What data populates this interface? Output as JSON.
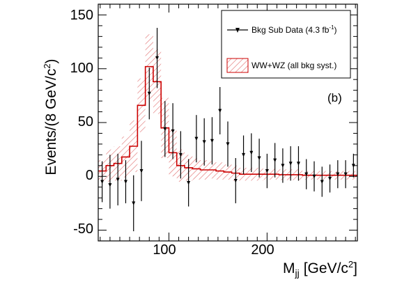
{
  "chart_data": {
    "type": "histogram",
    "panel_label": "(b)",
    "xlabel": "M",
    "xlabel_sub": "jj",
    "xlabel_unit": "[GeV/c",
    "xlabel_unit_sup": "2",
    "xlabel_unit_close": "]",
    "ylabel": "Events/(8 GeV/c",
    "ylabel_sup": "2",
    "ylabel_close": ")",
    "xlim": [
      28,
      292
    ],
    "ylim": [
      -60,
      160
    ],
    "x_ticks": [
      100,
      200
    ],
    "x_tick_labels": [
      "100",
      "200"
    ],
    "y_ticks": [
      -50,
      0,
      50,
      100,
      150
    ],
    "y_tick_labels": [
      "-50",
      "0",
      "50",
      "100",
      "150"
    ],
    "legend": {
      "placement": "top-right",
      "data_label": "Bkg Sub Data (4.3 fb",
      "data_label_sup": "-1",
      "data_label_close": ")",
      "band_label": "WW+WZ (all bkg syst.)"
    },
    "bkg_sub_data": {
      "name": "Bkg Sub Data (4.3 fb-1)",
      "x": [
        32,
        40,
        48,
        56,
        64,
        72,
        80,
        88,
        96,
        104,
        112,
        120,
        128,
        136,
        144,
        152,
        160,
        168,
        176,
        184,
        192,
        200,
        208,
        216,
        224,
        232,
        240,
        248,
        256,
        264,
        272,
        280,
        288
      ],
      "y": [
        -5,
        -8,
        -3,
        -5,
        -25,
        5,
        77,
        110,
        44,
        42,
        20,
        -6,
        35,
        32,
        33,
        61,
        30,
        -4,
        20,
        22,
        17,
        5,
        15,
        10,
        12,
        12,
        2,
        0,
        -5,
        -2,
        2,
        2,
        10
      ],
      "err_up": [
        19,
        28,
        24,
        20,
        26,
        28,
        24,
        28,
        26,
        26,
        22,
        22,
        22,
        22,
        22,
        22,
        21,
        21,
        18,
        18,
        18,
        16,
        16,
        16,
        16,
        16,
        14,
        14,
        14,
        13,
        13,
        13,
        11
      ],
      "err_down": [
        19,
        22,
        24,
        20,
        26,
        28,
        24,
        28,
        26,
        26,
        22,
        22,
        22,
        22,
        22,
        22,
        21,
        21,
        18,
        18,
        18,
        16,
        16,
        16,
        16,
        16,
        14,
        14,
        14,
        13,
        13,
        13,
        11
      ]
    },
    "ww_wz": {
      "name": "WW+WZ (all bkg syst.)",
      "bin_edges": [
        28,
        36,
        44,
        52,
        60,
        68,
        76,
        84,
        92,
        100,
        108,
        116,
        124,
        132,
        140,
        148,
        156,
        164,
        172,
        180,
        188,
        196,
        204,
        212,
        220,
        228,
        236,
        244,
        252,
        260,
        268,
        276,
        284,
        292
      ],
      "values": [
        5,
        10,
        12,
        18,
        28,
        66,
        102,
        88,
        45,
        22,
        10,
        8,
        7,
        6,
        6,
        5,
        4,
        3,
        2,
        2,
        2,
        2,
        2,
        1.5,
        1.5,
        1.5,
        1,
        1,
        1,
        1,
        1,
        1,
        1
      ],
      "syst": [
        10,
        15,
        16,
        19,
        24,
        25,
        30,
        30,
        28,
        22,
        15,
        12,
        10,
        9,
        8,
        8,
        7,
        7,
        6,
        6,
        6,
        5,
        5,
        5,
        5,
        5,
        4,
        4,
        4,
        4,
        4,
        4,
        4
      ]
    },
    "colors": {
      "band": "#d62828",
      "line": "#cc0000",
      "data": "#000000",
      "frame": "#000000"
    }
  }
}
